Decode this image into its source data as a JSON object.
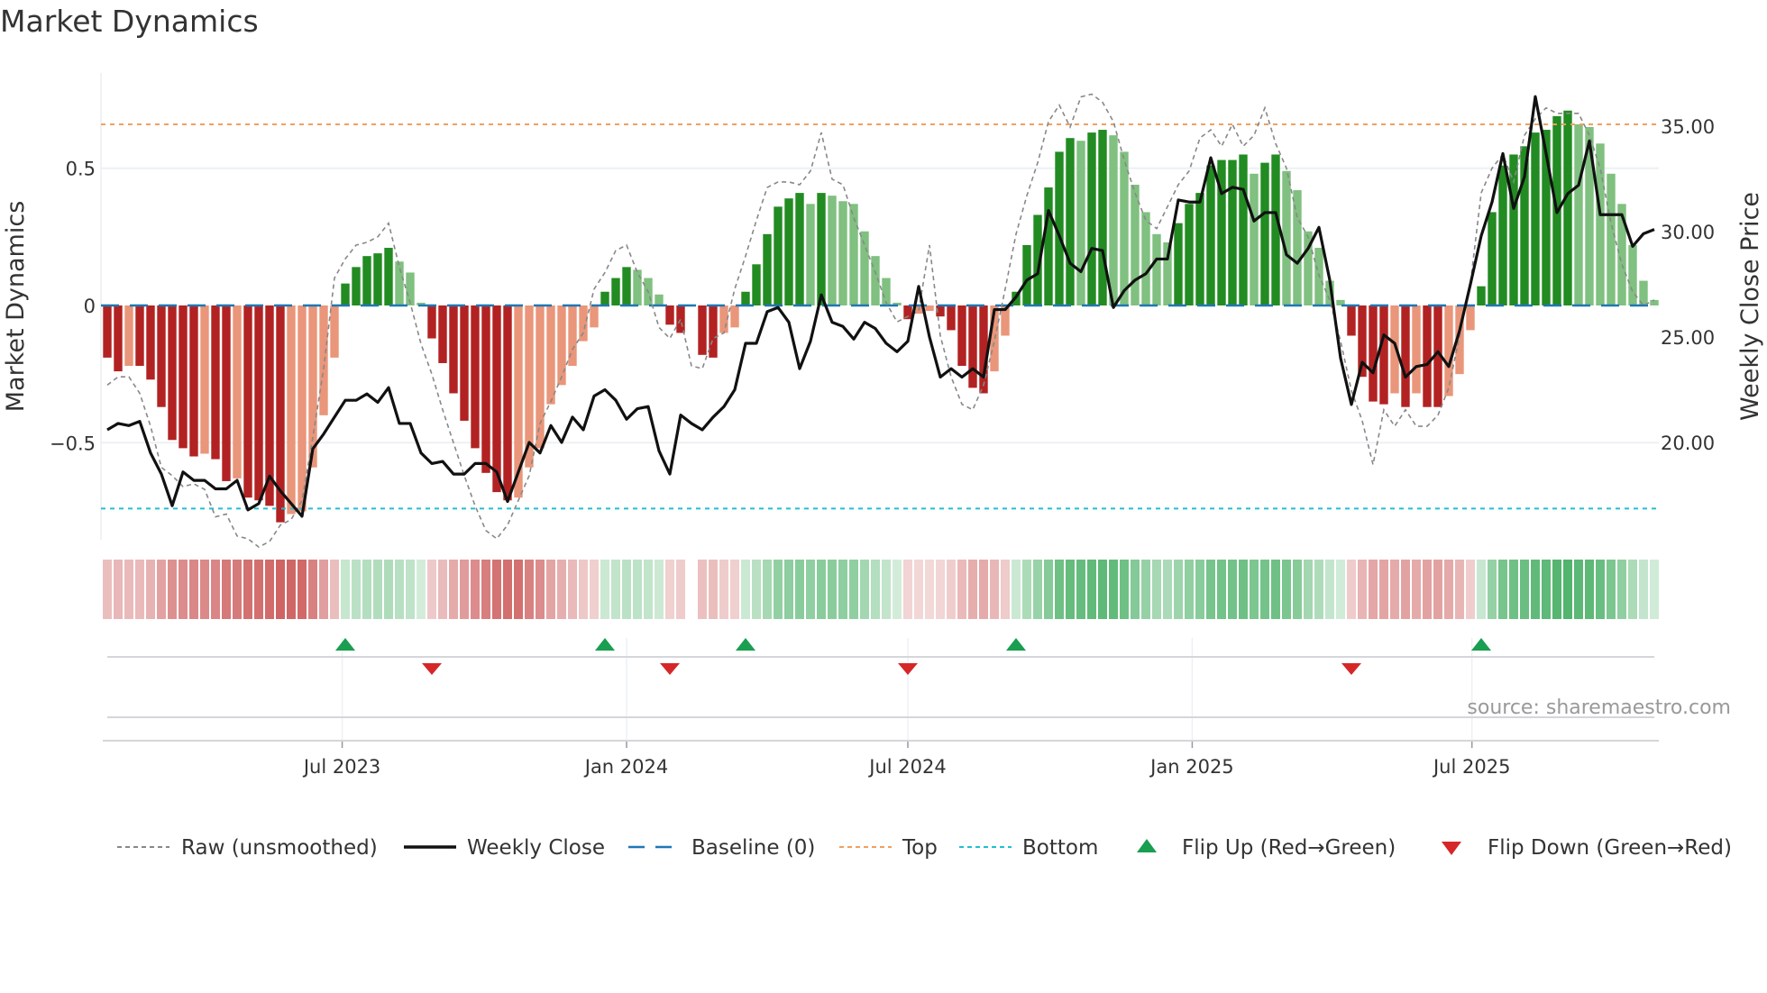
{
  "title": "Market Dynamics",
  "source": "source: sharemaestro.com",
  "colors": {
    "pos_strong": "#228b22",
    "pos_weak": "#80c080",
    "neg_strong": "#b22222",
    "neg_weak": "#e9967a",
    "strip_pos": "#3caa5a",
    "strip_neg": "#cd5c5c",
    "raw": "#888888",
    "close": "#111111",
    "baseline": "#1f77b4",
    "top": "#f0a060",
    "bottom": "#22c0d0",
    "flip_up": "#1a9e50",
    "flip_down": "#d62728"
  },
  "chart_data": {
    "type": "bar",
    "title": "Market Dynamics",
    "xlabel": "",
    "ylabel": "Market Dynamics",
    "y2label": "Weekly Close Price",
    "ylim": [
      -0.88,
      0.88
    ],
    "y2lim": [
      15.7,
      38.7
    ],
    "yticks": [
      {
        "v": 0.5,
        "label": "0.5"
      },
      {
        "v": 0,
        "label": "0"
      },
      {
        "v": -0.5,
        "label": "−0.5"
      }
    ],
    "y2ticks": [
      {
        "v": 35,
        "label": "35.00"
      },
      {
        "v": 30,
        "label": "30.00"
      },
      {
        "v": 25,
        "label": "25.00"
      },
      {
        "v": 20,
        "label": "20.00"
      }
    ],
    "xticks": [
      {
        "date": "2023-07-01",
        "label": "Jul 2023"
      },
      {
        "date": "2024-01-01",
        "label": "Jan 2024"
      },
      {
        "date": "2024-07-01",
        "label": "Jul 2024"
      },
      {
        "date": "2025-01-01",
        "label": "Jan 2025"
      },
      {
        "date": "2025-07-01",
        "label": "Jul 2025"
      }
    ],
    "start_week": "2023-01-30",
    "frequency": "weekly",
    "top_level": 0.66,
    "bottom_level": -0.74,
    "baseline": 0,
    "momentum": [
      -0.19,
      -0.24,
      -0.22,
      -0.22,
      -0.27,
      -0.37,
      -0.49,
      -0.52,
      -0.55,
      -0.54,
      -0.56,
      -0.64,
      -0.63,
      -0.7,
      -0.71,
      -0.73,
      -0.79,
      -0.76,
      -0.75,
      -0.59,
      -0.4,
      -0.19,
      0.08,
      0.14,
      0.18,
      0.19,
      0.21,
      0.16,
      0.12,
      0.01,
      -0.12,
      -0.21,
      -0.32,
      -0.42,
      -0.52,
      -0.61,
      -0.68,
      -0.71,
      -0.7,
      -0.59,
      -0.52,
      -0.36,
      -0.29,
      -0.22,
      -0.13,
      -0.08,
      0.05,
      0.1,
      0.14,
      0.13,
      0.1,
      0.04,
      -0.07,
      -0.1,
      0,
      -0.18,
      -0.19,
      -0.1,
      -0.08,
      0.05,
      0.15,
      0.26,
      0.36,
      0.39,
      0.41,
      0.37,
      0.41,
      0.4,
      0.38,
      0.37,
      0.27,
      0.18,
      0.1,
      0.01,
      -0.05,
      -0.03,
      -0.02,
      -0.04,
      -0.09,
      -0.22,
      -0.3,
      -0.32,
      -0.24,
      -0.11,
      0.05,
      0.22,
      0.33,
      0.43,
      0.56,
      0.61,
      0.6,
      0.63,
      0.64,
      0.62,
      0.56,
      0.44,
      0.34,
      0.26,
      0.23,
      0.3,
      0.37,
      0.41,
      0.51,
      0.53,
      0.53,
      0.55,
      0.48,
      0.52,
      0.55,
      0.49,
      0.42,
      0.27,
      0.21,
      0.09,
      0.02,
      -0.11,
      -0.26,
      -0.35,
      -0.36,
      -0.32,
      -0.37,
      -0.32,
      -0.37,
      -0.37,
      -0.33,
      -0.25,
      -0.09,
      0.07,
      0.34,
      0.51,
      0.55,
      0.58,
      0.63,
      0.64,
      0.69,
      0.71,
      0.66,
      0.65,
      0.59,
      0.48,
      0.37,
      0.22,
      0.09,
      0.02
    ],
    "raw": [
      -0.29,
      -0.26,
      -0.26,
      -0.32,
      -0.44,
      -0.59,
      -0.62,
      -0.66,
      -0.65,
      -0.67,
      -0.77,
      -0.76,
      -0.84,
      -0.85,
      -0.88,
      -0.86,
      -0.8,
      -0.78,
      -0.71,
      -0.48,
      -0.23,
      0.1,
      0.17,
      0.22,
      0.23,
      0.25,
      0.3,
      0.14,
      0.01,
      -0.14,
      -0.25,
      -0.38,
      -0.5,
      -0.62,
      -0.73,
      -0.82,
      -0.85,
      -0.8,
      -0.71,
      -0.62,
      -0.43,
      -0.35,
      -0.26,
      -0.16,
      -0.1,
      0.06,
      0.12,
      0.2,
      0.22,
      0.12,
      0.05,
      -0.08,
      -0.12,
      -0.05,
      -0.22,
      -0.23,
      -0.12,
      -0.1,
      0.06,
      0.18,
      0.31,
      0.43,
      0.45,
      0.45,
      0.44,
      0.49,
      0.63,
      0.46,
      0.44,
      0.32,
      0.22,
      0.12,
      0.01,
      -0.06,
      -0.04,
      -0.02,
      0.22,
      -0.11,
      -0.26,
      -0.36,
      -0.38,
      -0.29,
      -0.13,
      0.06,
      0.26,
      0.4,
      0.52,
      0.67,
      0.73,
      0.65,
      0.76,
      0.77,
      0.74,
      0.67,
      0.53,
      0.41,
      0.31,
      0.28,
      0.36,
      0.44,
      0.49,
      0.61,
      0.64,
      0.58,
      0.66,
      0.58,
      0.62,
      0.72,
      0.59,
      0.5,
      0.32,
      0.25,
      0.11,
      0.02,
      -0.13,
      -0.31,
      -0.42,
      -0.58,
      -0.38,
      -0.44,
      -0.38,
      -0.44,
      -0.44,
      -0.4,
      -0.3,
      -0.11,
      0.08,
      0.41,
      0.5,
      0.55,
      0.45,
      0.62,
      0.68,
      0.72,
      0.7,
      0.7,
      0.7,
      0.62,
      0.5,
      0.3,
      0.15,
      0.05,
      0.0,
      0.02
    ],
    "close": [
      20.6,
      20.9,
      20.8,
      21.0,
      19.5,
      18.5,
      17.0,
      18.6,
      18.2,
      18.2,
      17.8,
      17.8,
      18.2,
      16.8,
      17.1,
      18.4,
      17.7,
      17.1,
      16.5,
      19.7,
      20.4,
      21.2,
      22.0,
      22.0,
      22.3,
      21.9,
      22.6,
      20.9,
      20.9,
      19.5,
      19.0,
      19.1,
      18.5,
      18.5,
      19.0,
      19.0,
      18.6,
      17.2,
      18.6,
      20.0,
      19.5,
      20.8,
      20.0,
      21.2,
      20.6,
      22.2,
      22.5,
      22.0,
      21.1,
      21.6,
      21.7,
      19.6,
      18.5,
      21.3,
      20.9,
      20.6,
      21.2,
      21.7,
      22.5,
      24.7,
      24.7,
      26.2,
      26.4,
      25.7,
      23.5,
      24.8,
      27.0,
      25.7,
      25.5,
      24.9,
      25.7,
      25.4,
      24.7,
      24.3,
      24.8,
      27.4,
      25.0,
      23.1,
      23.5,
      23.1,
      23.5,
      23.1,
      26.3,
      26.3,
      26.9,
      27.7,
      28.0,
      31.0,
      29.8,
      28.5,
      28.1,
      29.2,
      29.1,
      26.4,
      27.2,
      27.7,
      28.0,
      28.7,
      28.7,
      31.5,
      31.4,
      31.4,
      33.5,
      31.8,
      32.1,
      32.0,
      30.5,
      30.9,
      30.9,
      28.9,
      28.5,
      29.2,
      30.2,
      27.7,
      24.0,
      21.8,
      23.8,
      23.3,
      25.1,
      24.7,
      23.1,
      23.6,
      23.7,
      24.3,
      23.6,
      25.3,
      27.5,
      29.8,
      31.4,
      33.7,
      31.1,
      32.6,
      36.4,
      33.7,
      30.9,
      31.8,
      32.2,
      34.3,
      30.8,
      30.8,
      30.8,
      29.3,
      29.9,
      30.1
    ]
  },
  "legend": [
    {
      "key": "raw",
      "label": "Raw (unsmoothed)"
    },
    {
      "key": "close",
      "label": "Weekly Close"
    },
    {
      "key": "baseline",
      "label": "Baseline (0)"
    },
    {
      "key": "top",
      "label": "Top"
    },
    {
      "key": "bottom",
      "label": "Bottom"
    },
    {
      "key": "flip_up",
      "label": "Flip Up (Red→Green)"
    },
    {
      "key": "flip_down",
      "label": "Flip Down (Green→Red)"
    }
  ]
}
